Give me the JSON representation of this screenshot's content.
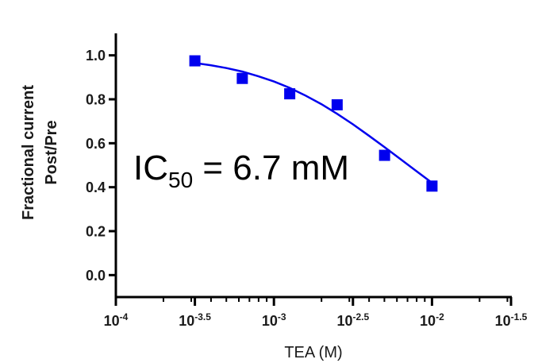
{
  "chart_data": {
    "type": "scatter",
    "title": "",
    "xlabel": "TEA (M)",
    "ylabel_lines": [
      "Fractional current",
      "Post/Pre"
    ],
    "x_scale": "log10",
    "xlim_log10": [
      -4,
      -1.5
    ],
    "ylim": [
      -0.1,
      1.1
    ],
    "x_ticks": [
      {
        "exp": -4,
        "base": "10",
        "sup": "-4"
      },
      {
        "exp": -3.5,
        "base": "10",
        "sup": "-3.5"
      },
      {
        "exp": -3,
        "base": "10",
        "sup": "-3"
      },
      {
        "exp": -2.5,
        "base": "10",
        "sup": "-2.5"
      },
      {
        "exp": -2,
        "base": "10",
        "sup": "-2"
      },
      {
        "exp": -1.5,
        "base": "10",
        "sup": "-1.5"
      }
    ],
    "y_ticks": [
      {
        "value": 0.0,
        "label": "0.0"
      },
      {
        "value": 0.2,
        "label": "0.2"
      },
      {
        "value": 0.4,
        "label": "0.4"
      },
      {
        "value": 0.6,
        "label": "0.6"
      },
      {
        "value": 0.8,
        "label": "0.8"
      },
      {
        "value": 1.0,
        "label": "1.0"
      }
    ],
    "series": [
      {
        "name": "data",
        "marker": "square",
        "color": "#0000ee",
        "x_log10": [
          -3.5,
          -3.2,
          -2.9,
          -2.6,
          -2.3,
          -2.0
        ],
        "y": [
          0.975,
          0.895,
          0.825,
          0.775,
          0.545,
          0.405
        ]
      },
      {
        "name": "fit",
        "type": "line",
        "color": "#0000ee",
        "x_log10": [
          -3.5,
          -3.4,
          -3.3,
          -3.2,
          -3.1,
          -3.0,
          -2.9,
          -2.8,
          -2.7,
          -2.6,
          -2.5,
          -2.4,
          -2.3,
          -2.2,
          -2.1,
          -2.0
        ],
        "y": [
          0.965,
          0.955,
          0.942,
          0.926,
          0.905,
          0.881,
          0.852,
          0.817,
          0.778,
          0.734,
          0.686,
          0.635,
          0.582,
          0.528,
          0.474,
          0.42
        ]
      }
    ],
    "annotation": {
      "base": "IC",
      "sub": "50",
      "rest": " = 6.7 mM"
    },
    "colors": {
      "axis": "#000000",
      "text": "#1a1a1a",
      "series": "#0000ee"
    }
  }
}
